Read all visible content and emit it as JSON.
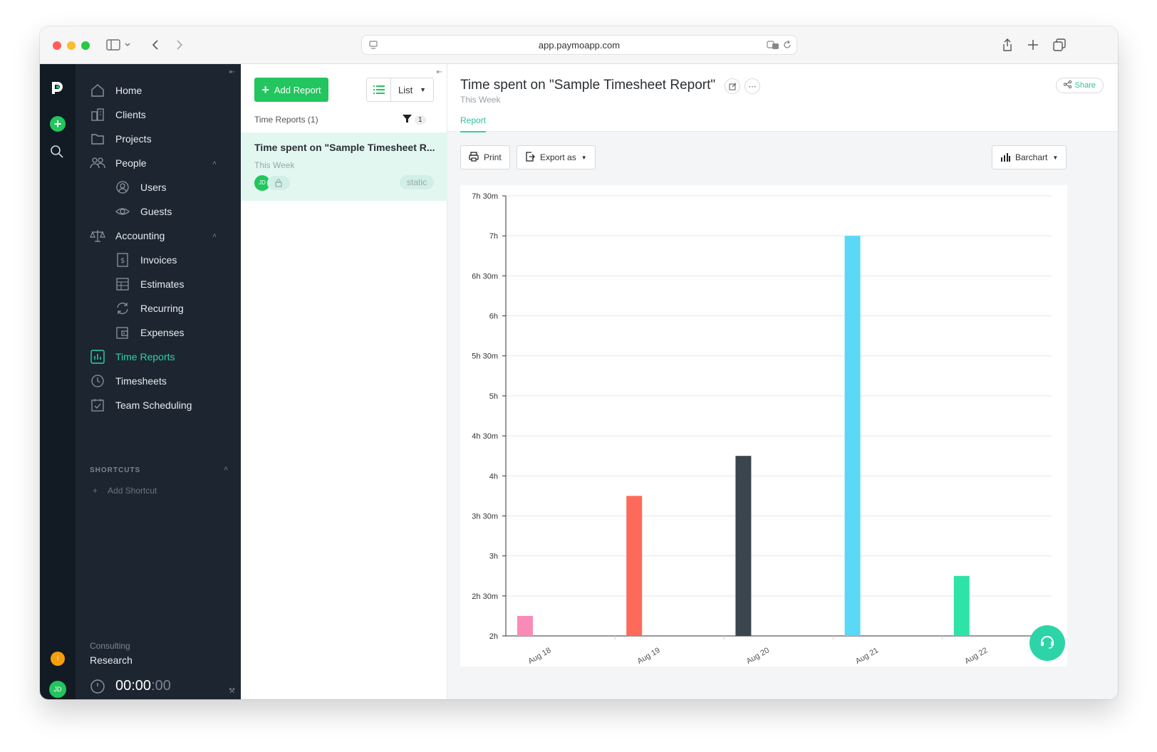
{
  "browser": {
    "url": "app.paymoapp.com"
  },
  "nav": {
    "items": [
      {
        "label": "Home",
        "icon": "home-icon"
      },
      {
        "label": "Clients",
        "icon": "clients-icon"
      },
      {
        "label": "Projects",
        "icon": "folder-icon"
      },
      {
        "label": "People",
        "icon": "people-icon"
      },
      {
        "label": "Users",
        "icon": "user-icon"
      },
      {
        "label": "Guests",
        "icon": "eye-icon"
      },
      {
        "label": "Accounting",
        "icon": "scale-icon"
      },
      {
        "label": "Invoices",
        "icon": "invoice-icon"
      },
      {
        "label": "Estimates",
        "icon": "estimate-icon"
      },
      {
        "label": "Recurring",
        "icon": "recurring-icon"
      },
      {
        "label": "Expenses",
        "icon": "wallet-icon"
      },
      {
        "label": "Time Reports",
        "icon": "bar-chart-icon"
      },
      {
        "label": "Timesheets",
        "icon": "clock-icon"
      },
      {
        "label": "Team Scheduling",
        "icon": "calendar-check-icon"
      }
    ],
    "active": "Time Reports",
    "shortcuts_heading": "SHORTCUTS",
    "add_shortcut": "Add Shortcut",
    "tracker": {
      "project": "Consulting",
      "task": "Research",
      "time_main": "00:00",
      "time_seconds": ":00"
    }
  },
  "list": {
    "add_button": "Add Report",
    "view_mode": "List",
    "heading": "Time Reports (1)",
    "filter_count": "1",
    "reports": [
      {
        "title": "Time spent on \"Sample Timesheet R...",
        "period": "This Week",
        "avatar": "JD",
        "tag": "static"
      }
    ]
  },
  "main": {
    "title": "Time spent on \"Sample Timesheet Report\"",
    "subtitle": "This Week",
    "share": "Share",
    "tab": "Report",
    "print": "Print",
    "export": "Export as",
    "chart_type": "Barchart"
  },
  "rail": {
    "avatar": "JD",
    "notif": "!"
  },
  "colors": {
    "accent": "#2dd4a7",
    "green": "#22c55e",
    "sidebar": "#1c2530",
    "rail": "#121a24"
  },
  "chart_data": {
    "type": "bar",
    "categories": [
      "Aug 18",
      "Aug 19",
      "Aug 20",
      "Aug 21",
      "Aug 22"
    ],
    "values_hours": [
      2.25,
      3.75,
      4.25,
      7.0,
      2.75
    ],
    "bar_colors": [
      "#f98bb8",
      "#fd6a5a",
      "#3b454e",
      "#5ad8f5",
      "#2ee3a6"
    ],
    "ylim": [
      2,
      7.5
    ],
    "y_ticks": [
      "2h",
      "2h 30m",
      "3h",
      "3h 30m",
      "4h",
      "4h 30m",
      "5h",
      "5h 30m",
      "6h",
      "6h 30m",
      "7h",
      "7h 30m"
    ],
    "grid": true
  }
}
